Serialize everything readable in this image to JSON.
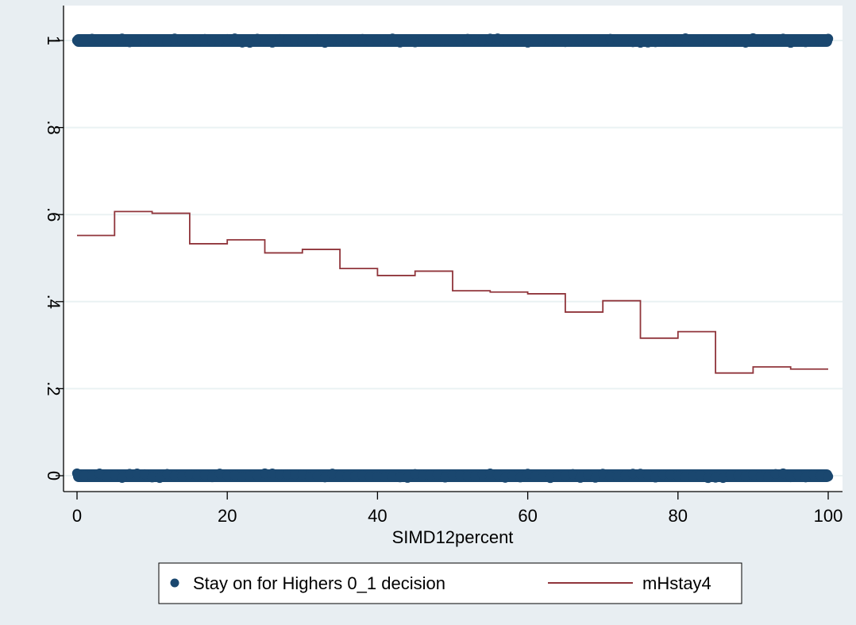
{
  "chart_data": {
    "type": "scatter",
    "xlabel": "SIMD12percent",
    "ylabel": "",
    "xlim": [
      0,
      100
    ],
    "ylim": [
      0,
      1
    ],
    "x_ticks": [
      0,
      20,
      40,
      60,
      80,
      100
    ],
    "x_tick_labels": [
      "0",
      "20",
      "40",
      "60",
      "80",
      "100"
    ],
    "y_ticks": [
      0,
      0.2,
      0.4,
      0.6,
      0.8,
      1
    ],
    "y_tick_labels": [
      "0",
      ".2",
      ".4",
      ".6",
      ".8",
      "1"
    ],
    "grid": "horizontal",
    "legend_position": "bottom",
    "series": [
      {
        "name": "Stay on for Highers 0_1 decision",
        "kind": "scatter",
        "color": "#1a476f",
        "bands": [
          {
            "y": 1,
            "x_range": [
              0,
              100
            ]
          },
          {
            "y": 0,
            "x_range": [
              0,
              100
            ]
          }
        ]
      },
      {
        "name": "mHstay4",
        "kind": "step",
        "color": "#90353b",
        "steps": [
          {
            "x0": 0,
            "x1": 5,
            "y": 0.552
          },
          {
            "x0": 5,
            "x1": 10,
            "y": 0.607
          },
          {
            "x0": 10,
            "x1": 15,
            "y": 0.603
          },
          {
            "x0": 15,
            "x1": 20,
            "y": 0.533
          },
          {
            "x0": 20,
            "x1": 25,
            "y": 0.542
          },
          {
            "x0": 25,
            "x1": 30,
            "y": 0.512
          },
          {
            "x0": 30,
            "x1": 35,
            "y": 0.52
          },
          {
            "x0": 35,
            "x1": 40,
            "y": 0.476
          },
          {
            "x0": 40,
            "x1": 45,
            "y": 0.46
          },
          {
            "x0": 45,
            "x1": 50,
            "y": 0.47
          },
          {
            "x0": 50,
            "x1": 55,
            "y": 0.425
          },
          {
            "x0": 55,
            "x1": 60,
            "y": 0.422
          },
          {
            "x0": 60,
            "x1": 65,
            "y": 0.418
          },
          {
            "x0": 65,
            "x1": 70,
            "y": 0.376
          },
          {
            "x0": 70,
            "x1": 75,
            "y": 0.402
          },
          {
            "x0": 75,
            "x1": 80,
            "y": 0.316
          },
          {
            "x0": 80,
            "x1": 85,
            "y": 0.331
          },
          {
            "x0": 85,
            "x1": 90,
            "y": 0.236
          },
          {
            "x0": 90,
            "x1": 95,
            "y": 0.25
          },
          {
            "x0": 95,
            "x1": 100,
            "y": 0.245
          }
        ]
      }
    ]
  }
}
